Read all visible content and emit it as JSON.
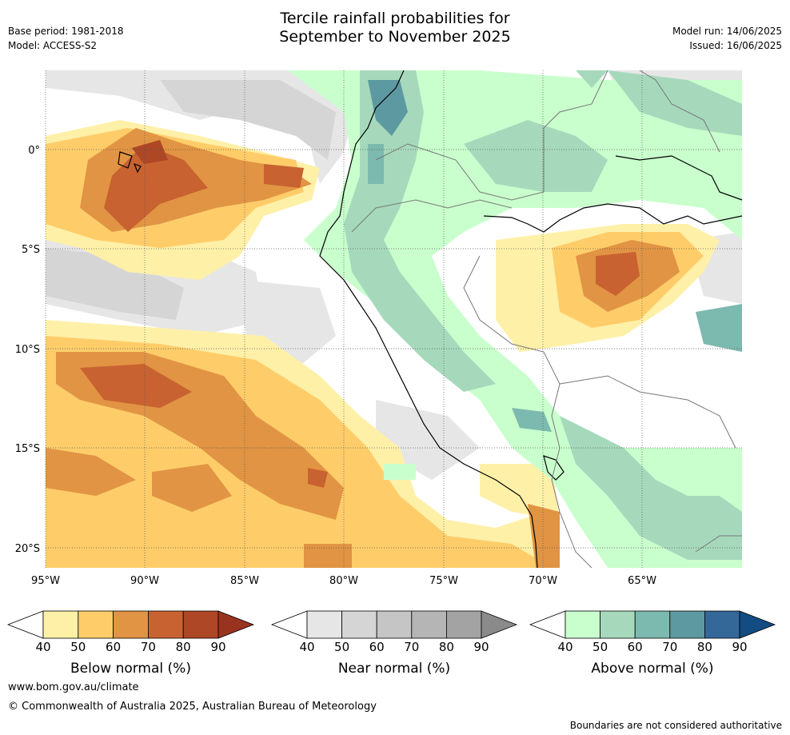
{
  "header": {
    "title_line1": "Tercile rainfall probabilities for",
    "title_line2": "September to November 2025",
    "base_period": "Base period: 1981-2018",
    "model": "Model: ACCESS-S2",
    "model_run": "Model run: 14/06/2025",
    "issued": "Issued: 16/06/2025"
  },
  "map": {
    "lat_labels": [
      "0°",
      "5°S",
      "10°S",
      "15°S",
      "20°S"
    ],
    "lon_labels": [
      "95°W",
      "90°W",
      "85°W",
      "80°W",
      "75°W",
      "70°W",
      "65°W"
    ],
    "colors": {
      "below": [
        "#fff0a8",
        "#fecd6a",
        "#e19443",
        "#c86230",
        "#ae4725",
        "#993320"
      ],
      "near": [
        "#e6e6e6",
        "#d5d5d5",
        "#c5c5c5",
        "#b5b5b5",
        "#a3a3a3",
        "#8a8a8a"
      ],
      "above": [
        "#c9ffcd",
        "#a6d9bc",
        "#7cb9ae",
        "#5d99a1",
        "#336898",
        "#124c82"
      ]
    }
  },
  "legends": [
    {
      "id": "below",
      "title": "Below normal (%)",
      "ticks": [
        "40",
        "50",
        "60",
        "70",
        "80",
        "90"
      ]
    },
    {
      "id": "near",
      "title": "Near normal (%)",
      "ticks": [
        "40",
        "50",
        "60",
        "70",
        "80",
        "90"
      ]
    },
    {
      "id": "above",
      "title": "Above normal (%)",
      "ticks": [
        "40",
        "50",
        "60",
        "70",
        "80",
        "90"
      ]
    }
  ],
  "footer": {
    "url": "www.bom.gov.au/climate",
    "copyright": "© Commonwealth of Australia 2025, Australian Bureau of Meteorology",
    "disclaimer": "Boundaries are not considered authoritative"
  }
}
